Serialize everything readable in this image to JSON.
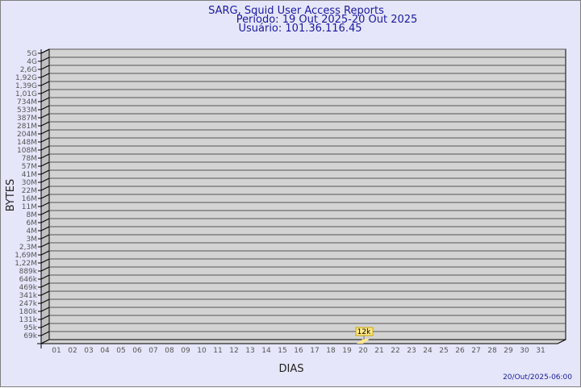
{
  "chart_data": {
    "type": "bar",
    "title": "SARG, Squid User Access Reports",
    "subtitle": [
      "Período: 19 Out 2025-20 Out 2025",
      "Usuário: 101.36.116.45"
    ],
    "xlabel": "DIAS",
    "ylabel": "BYTES",
    "y_scale": "log",
    "y_ticks": [
      "5G",
      "4G",
      "2,6G",
      "1,92G",
      "1,39G",
      "1,01G",
      "734M",
      "533M",
      "387M",
      "281M",
      "204M",
      "148M",
      "108M",
      "78M",
      "57M",
      "41M",
      "30M",
      "22M",
      "16M",
      "11M",
      "8M",
      "6M",
      "4M",
      "3M",
      "2,3M",
      "1,69M",
      "1,22M",
      "889k",
      "646k",
      "469k",
      "341k",
      "247k",
      "180k",
      "131k",
      "95k",
      "69k"
    ],
    "categories": [
      "01",
      "02",
      "03",
      "04",
      "05",
      "06",
      "07",
      "08",
      "09",
      "10",
      "11",
      "12",
      "13",
      "14",
      "15",
      "16",
      "17",
      "18",
      "19",
      "20",
      "21",
      "22",
      "23",
      "24",
      "25",
      "26",
      "27",
      "28",
      "29",
      "30",
      "31"
    ],
    "bars": [
      {
        "day": "20",
        "value": 12000,
        "label": "12k"
      }
    ],
    "grid": true,
    "footer": "20/Out/2025-06:00",
    "colors": {
      "background": "#e6e6fa",
      "plot": "#d3d3d3",
      "bar": "#ffe88a",
      "text": "#1a1aa0"
    }
  }
}
